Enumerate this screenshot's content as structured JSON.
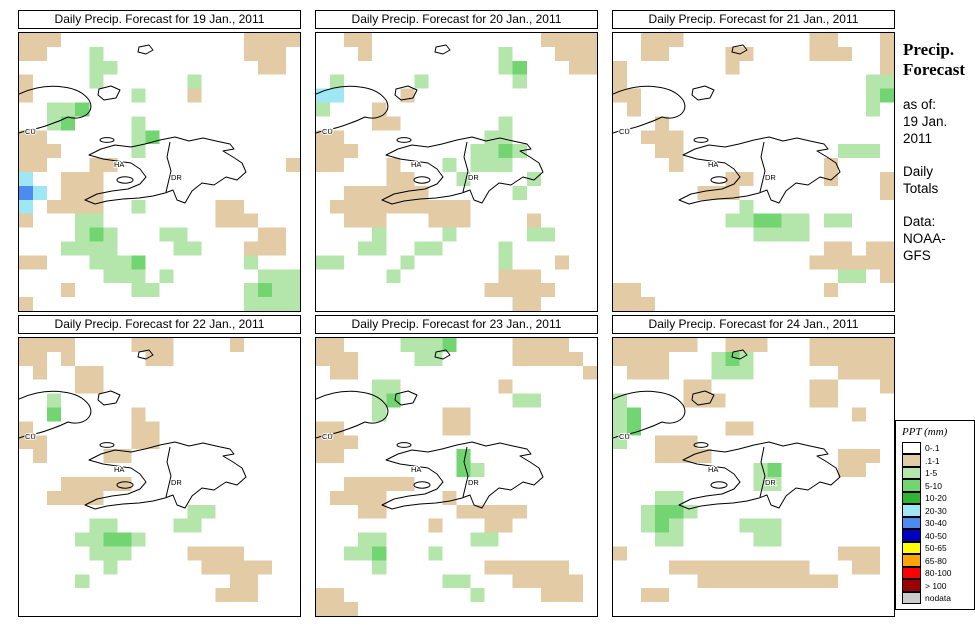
{
  "figure": {
    "panels": [
      {
        "title": "Daily Precip. Forecast for  19 Jan., 2011",
        "grid": [
          "ttt.............tttt",
          "tt...g..........ttt.",
          ".....gg..........tt.",
          "t....g......g.......",
          "t.......g...t.......",
          "..ggG...............",
          "..gG....g...........",
          "tt......gG..........",
          "ttt.....g...........",
          "tt...tt............t",
          "c..ttt..............",
          "bc.ttt..............",
          "c.tttt..g.....tt....",
          "t...gg........ttt...",
          "....gGg...gg.....tt.",
          "...gggg....gg...ttt.",
          "tt...gggG.......g...",
          "......ggg.g......ggg",
          "...t....gg......gGgg",
          "t...............gggg"
        ]
      },
      {
        "title": "Daily Precip. Forecast for  20 Jan., 2011",
        "grid": [
          "..tt............tttt",
          "...t.........g...ttt",
          ".............gG...tt",
          ".g.....g......g.....",
          "cc....t.............",
          "g...t...............",
          "....tt.......g......",
          "tt..........gg......",
          "ttt........ggGg.....",
          "tt...t...g.ggg......",
          ".....tt...g....g....",
          "..tttttt......g.....",
          ".tttttttttt.........",
          "..ttt...ttt....t....",
          "....g....g.....gg...",
          "...gg..gg....g......",
          "gg....g......g...t..",
          ".....g.......ttt....",
          "............ttttt...",
          "..............tt...."
        ]
      },
      {
        "title": "Daily Precip. Forecast for  21 Jan., 2011",
        "grid": [
          "..ttt.........tt...t",
          "..tt....tt....ttt..t",
          "t.......t..........t",
          "t.................gg",
          "tt................gG",
          ".t................g.",
          "...t................",
          "..ttt...............",
          "...tt...........ggg.",
          "....t..........t....",
          "........tt.....t...t",
          "......ttt..........t",
          ".........g..........",
          "........ggGGgg.gg...",
          "..........gggg......",
          "...............tt.tt",
          "..............tttttt",
          "................gg.t",
          "tt.............t....",
          "ttt................."
        ]
      },
      {
        "title": "Daily Precip. Forecast for  22 Jan., 2011",
        "grid": [
          "tttt....ttt....t....",
          "tt.t.....tt.........",
          ".t..tt..............",
          "....tt..............",
          "..g.................",
          "..G.....t...........",
          "t.......tt..........",
          "tt......tt..........",
          ".t....tt............",
          "....................",
          "...ttttt............",
          "..tttt..............",
          "............gg......",
          ".....gg....gg.......",
          "....ggGGg...........",
          ".....ggg....tttt....",
          "......g......ttttt..",
          "....g..........tt...",
          "..............ttt...",
          "...................."
        ]
      },
      {
        "title": "Daily Precip. Forecast for  23 Jan., 2011",
        "grid": [
          "tt....gggG....tttt..",
          "ttt....gg.....ttttt.",
          ".tt................t",
          "....gg.......t......",
          "....gG........gg....",
          "....g....tt.........",
          "tt.......tt.........",
          "ttt.................",
          "tt........G.........",
          "..........Gg........",
          "..ttttt.............",
          ".tttt....t..........",
          "...tt.....ttttt.....",
          "........t...tt......",
          "...gg......gg.......",
          "..ggG...g...........",
          "....g.......tttttt..",
          ".........gg...ttttt.",
          "tt.........g....ttt.",
          "ttt................."
        ]
      },
      {
        "title": "Daily Precip. Forecast for  24 Jan., 2011",
        "grid": [
          "tttttt..ttt...tttttt",
          "tttt...gGg....tttttt",
          ".ttt...ggg......tttt",
          ".....tt.......tt...t",
          "g....ttt......tt....",
          "gG...............t..",
          "gG......tt..........",
          "g..ttt..............",
          "...tttt.........ttt.",
          "..........gG....tt..",
          "..........gg........",
          "...gg...............",
          "..gGGg..............",
          "..gGg....ggg........",
          "...gg.....gg........",
          "t...............ttt.",
          "....tttttttttt...tt.",
          "......tttttttttt....",
          "..tt................",
          "...................."
        ]
      }
    ],
    "palette": {
      "t": "#E2CBA5",
      "g": "#B4E6AC",
      "G": "#72D572",
      "c": "#9FE7F5",
      "b": "#4D8BF0"
    },
    "map_labels": {
      "cu": "CU",
      "ha": "HA",
      "dr": "DR"
    },
    "sidebar": {
      "title_line1": "Precip.",
      "title_line2": "Forecast",
      "as_of_label": "as of:",
      "as_of_line1": "19 Jan.",
      "as_of_line2": "2011",
      "totals_line1": "Daily",
      "totals_line2": "Totals",
      "data_label": "Data:",
      "source_line1": "NOAA-",
      "source_line2": "GFS"
    },
    "legend": {
      "title": "PPT (mm)",
      "entries": [
        {
          "label": "0-.1",
          "color": "#FFFFFF"
        },
        {
          "label": ".1-1",
          "color": "#E2CBA5"
        },
        {
          "label": "1-5",
          "color": "#B4E6AC"
        },
        {
          "label": "5-10",
          "color": "#72D572"
        },
        {
          "label": "10-20",
          "color": "#2FB52F"
        },
        {
          "label": "20-30",
          "color": "#9FE7F5"
        },
        {
          "label": "30-40",
          "color": "#4D8BF0"
        },
        {
          "label": "40-50",
          "color": "#0000C0"
        },
        {
          "label": "50-65",
          "color": "#FFFF00"
        },
        {
          "label": "65-80",
          "color": "#FFA500"
        },
        {
          "label": "80-100",
          "color": "#FF0000"
        },
        {
          "label": "> 100",
          "color": "#9B0000"
        },
        {
          "label": "nodata",
          "color": "#CCCCCC"
        }
      ]
    }
  }
}
